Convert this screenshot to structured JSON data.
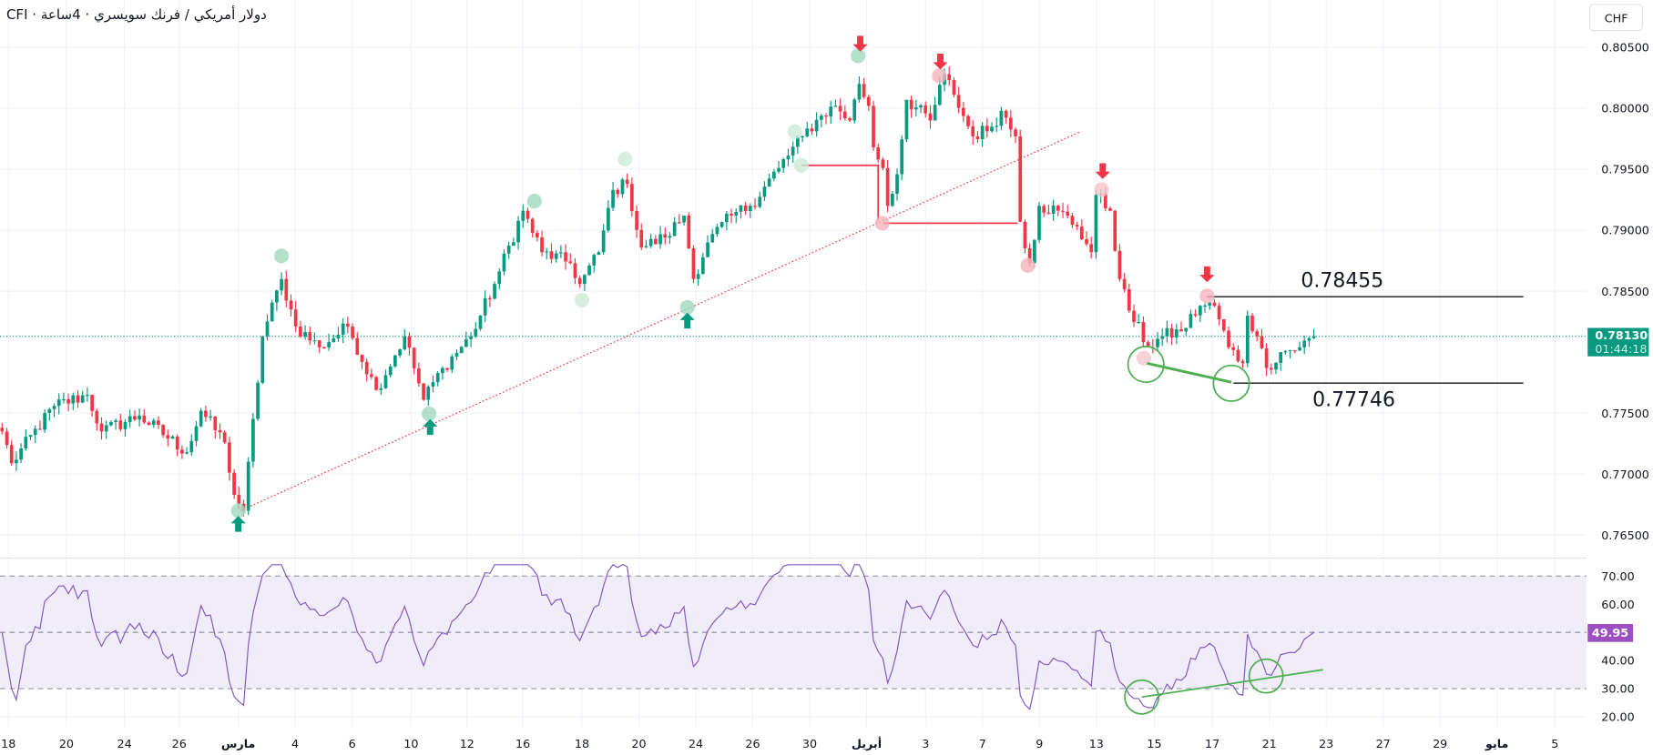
{
  "header": {
    "title": "CFI · دولار أمريكي / فرنك سويسري · 4ساعة",
    "currency_button": "CHF"
  },
  "price_axis": {
    "ticks": [
      "0.80500",
      "0.80000",
      "0.79500",
      "0.79000",
      "0.78500",
      "0.77500",
      "0.77000",
      "0.76500"
    ],
    "tick_values": [
      0.805,
      0.8,
      0.795,
      0.79,
      0.785,
      0.775,
      0.77,
      0.765
    ],
    "last_price": "0.78130",
    "countdown": "01:44:18"
  },
  "rsi_axis": {
    "ticks": [
      "70.00",
      "60.00",
      "40.00",
      "30.00",
      "20.00"
    ],
    "tick_values": [
      70,
      60,
      40,
      30,
      20
    ],
    "current": "49.95"
  },
  "time_axis": {
    "labels": [
      "18",
      "20",
      "24",
      "26",
      "مارس",
      "4",
      "6",
      "10",
      "12",
      "16",
      "18",
      "20",
      "24",
      "26",
      "30",
      "أبريل",
      "3",
      "7",
      "9",
      "13",
      "15",
      "17",
      "21",
      "23",
      "27",
      "29",
      "مايو",
      "5"
    ]
  },
  "annotations": {
    "resistance_label": "0.78455",
    "support_label": "0.77746",
    "resistance_value": 0.78455,
    "support_value": 0.77746
  },
  "colors": {
    "up": "#089981",
    "down": "#f23645",
    "rsi_line": "#7e57c2",
    "rsi_band": "#f1ecf9",
    "rsi_badge": "#9c4fc2",
    "price_badge": "#089981"
  },
  "chart_data": {
    "type": "candlestick",
    "title": "CFI · دولار أمريكي / فرنك سويسري · 4ساعة",
    "timeframe": "4h",
    "ylim": [
      0.763,
      0.807
    ],
    "rsi_ylim": [
      15,
      75
    ],
    "close_anchors": [
      [
        0,
        0.7735
      ],
      [
        2,
        0.7709
      ],
      [
        11,
        0.7756
      ],
      [
        18,
        0.7765
      ],
      [
        21,
        0.7735
      ],
      [
        29,
        0.7748
      ],
      [
        39,
        0.7718
      ],
      [
        42,
        0.7752
      ],
      [
        47,
        0.7726
      ],
      [
        49,
        0.7683
      ],
      [
        51,
        0.767
      ],
      [
        55,
        0.7813
      ],
      [
        59,
        0.786
      ],
      [
        62,
        0.7821
      ],
      [
        67,
        0.7804
      ],
      [
        73,
        0.7821
      ],
      [
        79,
        0.7769
      ],
      [
        85,
        0.7813
      ],
      [
        89,
        0.7761
      ],
      [
        93,
        0.7787
      ],
      [
        99,
        0.7813
      ],
      [
        104,
        0.7856
      ],
      [
        110,
        0.7916
      ],
      [
        114,
        0.7882
      ],
      [
        120,
        0.7873
      ],
      [
        122,
        0.7856
      ],
      [
        126,
        0.7882
      ],
      [
        129,
        0.7933
      ],
      [
        132,
        0.7938
      ],
      [
        135,
        0.7886
      ],
      [
        140,
        0.7894
      ],
      [
        144,
        0.7912
      ],
      [
        146,
        0.786
      ],
      [
        149,
        0.789
      ],
      [
        154,
        0.7912
      ],
      [
        158,
        0.792
      ],
      [
        164,
        0.7951
      ],
      [
        169,
        0.7977
      ],
      [
        173,
        0.7994
      ],
      [
        176,
        0.8002
      ],
      [
        179,
        0.799
      ],
      [
        181,
        0.802
      ],
      [
        183,
        0.8002
      ],
      [
        184,
        0.7968
      ],
      [
        186,
        0.7951
      ],
      [
        187,
        0.792
      ],
      [
        189,
        0.7946
      ],
      [
        191,
        0.8007
      ],
      [
        196,
        0.799
      ],
      [
        199,
        0.8028
      ],
      [
        201,
        0.8011
      ],
      [
        205,
        0.7977
      ],
      [
        209,
        0.7985
      ],
      [
        211,
        0.7998
      ],
      [
        214,
        0.7977
      ],
      [
        215,
        0.7907
      ],
      [
        217,
        0.7873
      ],
      [
        219,
        0.792
      ],
      [
        223,
        0.7916
      ],
      [
        227,
        0.7903
      ],
      [
        230,
        0.7882
      ],
      [
        231,
        0.7929
      ],
      [
        234,
        0.7916
      ],
      [
        236,
        0.786
      ],
      [
        238,
        0.7834
      ],
      [
        242,
        0.7804
      ],
      [
        245,
        0.7813
      ],
      [
        249,
        0.7817
      ],
      [
        253,
        0.7838
      ],
      [
        256,
        0.7838
      ],
      [
        259,
        0.7804
      ],
      [
        262,
        0.7791
      ],
      [
        263,
        0.783
      ],
      [
        265,
        0.7813
      ],
      [
        267,
        0.7787
      ],
      [
        270,
        0.78
      ],
      [
        274,
        0.7804
      ],
      [
        277,
        0.7813
      ]
    ],
    "indicator": "RSI 14",
    "rsi_levels": [
      70,
      50,
      30
    ]
  }
}
